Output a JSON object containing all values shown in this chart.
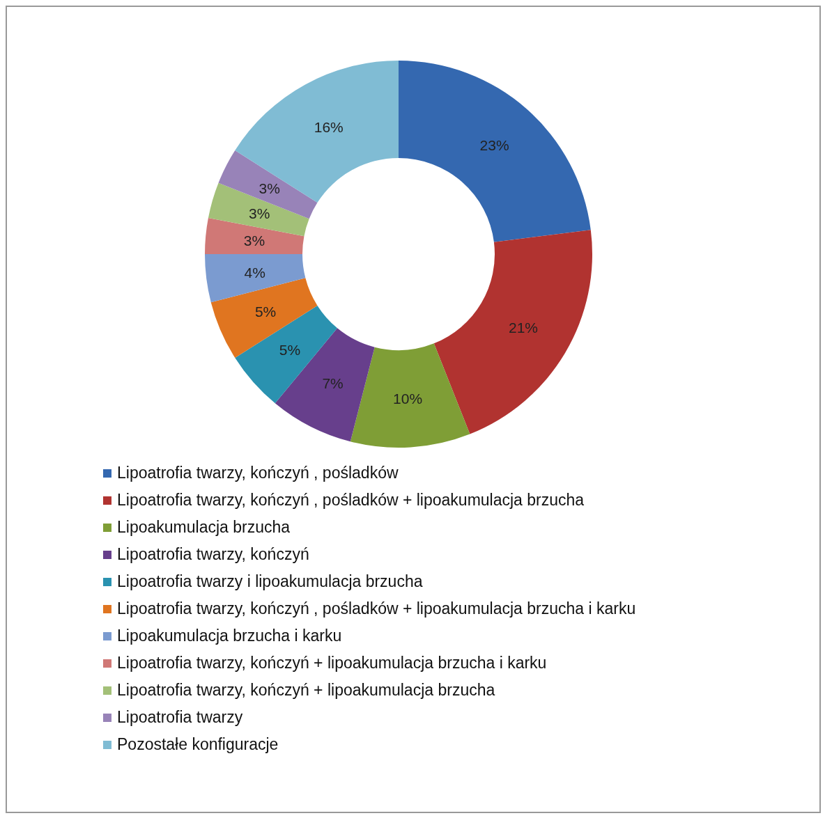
{
  "chart_data": {
    "type": "donut",
    "categories": [
      "Lipoatrofia twarzy, kończyń , pośladków",
      "Lipoatrofia twarzy, kończyń , pośladków + lipoakumulacja brzucha",
      "Lipoakumulacja brzucha",
      "Lipoatrofia twarzy, kończyń",
      "Lipoatrofia twarzy i lipoakumulacja brzucha",
      "Lipoatrofia twarzy, kończyń , pośladków + lipoakumulacja brzucha i karku",
      "Lipoakumulacja brzucha i karku",
      "Lipoatrofia twarzy, kończyń + lipoakumulacja brzucha i karku",
      "Lipoatrofia twarzy, kończyń + lipoakumulacja brzucha",
      "Lipoatrofia twarzy",
      "Pozostałe konfiguracje"
    ],
    "values": [
      23,
      21,
      10,
      7,
      5,
      5,
      4,
      3,
      3,
      3,
      16
    ],
    "value_labels": [
      "23%",
      "21%",
      "10%",
      "7%",
      "5%",
      "5%",
      "4%",
      "3%",
      "3%",
      "3%",
      "16%"
    ],
    "colors": [
      "#3468b0",
      "#b13330",
      "#7f9e36",
      "#673f8c",
      "#2a92b0",
      "#e07520",
      "#7b9bd0",
      "#d07876",
      "#a3c078",
      "#9883b8",
      "#80bcd4"
    ],
    "legend": "bottom"
  }
}
